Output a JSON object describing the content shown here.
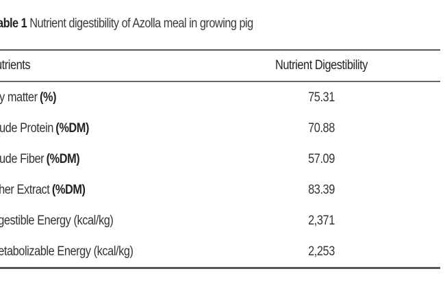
{
  "caption": {
    "label": "able 1",
    "text": "Nutrient digestibility of Azolla meal in growing pig"
  },
  "table": {
    "headers": {
      "nutrients": "utrients",
      "digestibility": "Nutrient Digestibility"
    },
    "rows": [
      {
        "name": "ry matter",
        "unit": "(%)",
        "value": "75.31"
      },
      {
        "name": "rude Protein",
        "unit": "(%DM)",
        "value": "70.88"
      },
      {
        "name": "rude Fiber",
        "unit": "(%DM)",
        "value": "57.09"
      },
      {
        "name": "ther Extract",
        "unit": "(%DM)",
        "value": "83.39"
      },
      {
        "name": "igestible Energy (kcal/kg)",
        "unit": "",
        "value": "2,371"
      },
      {
        "name": "letabolizable Energy (kcal/kg)",
        "unit": "",
        "value": "2,253"
      }
    ]
  }
}
